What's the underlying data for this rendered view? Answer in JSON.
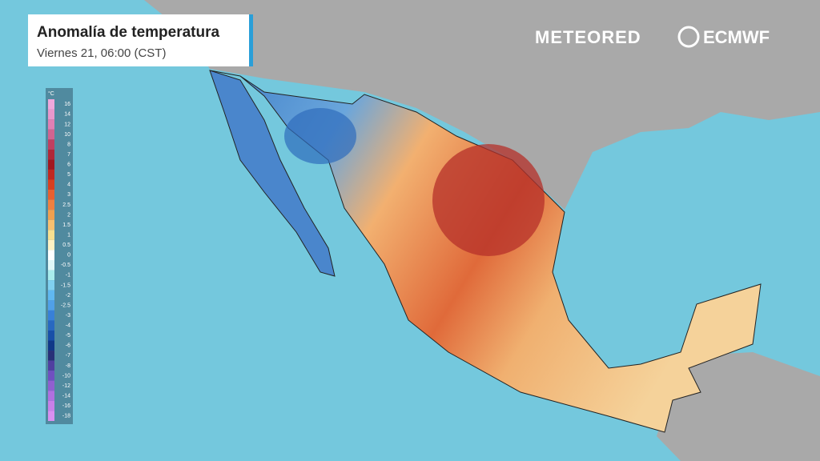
{
  "header": {
    "title": "Anomalía de temperatura",
    "subtitle": "Viernes 21, 06:00 (CST)"
  },
  "brand": {
    "left": "METEORED",
    "right": "ECMWF"
  },
  "legend": {
    "unit": "°C",
    "labels": [
      16,
      14,
      12,
      10,
      8,
      7,
      6,
      5,
      4,
      3,
      2.5,
      2,
      1.5,
      1,
      0.5,
      0,
      -0.5,
      -1,
      -1.5,
      -2,
      -2.5,
      -3,
      -4,
      -5,
      -6,
      -7,
      -8,
      -10,
      -12,
      -14,
      -16,
      -18
    ],
    "colors": [
      "#f0a8dc",
      "#e898cc",
      "#e080b4",
      "#d06490",
      "#c04060",
      "#b02838",
      "#a01820",
      "#c02820",
      "#d84020",
      "#e86030",
      "#f08040",
      "#f0a050",
      "#f8c070",
      "#f8e090",
      "#fff2c4",
      "#ffffff",
      "#e0f8f8",
      "#a8ecec",
      "#80d0f0",
      "#60b8f0",
      "#50a0e8",
      "#3880d8",
      "#2868c0",
      "#1850a8",
      "#103888",
      "#283078",
      "#5040a0",
      "#7050c0",
      "#9060d0",
      "#b070e0",
      "#c880e8",
      "#d890f0"
    ]
  }
}
